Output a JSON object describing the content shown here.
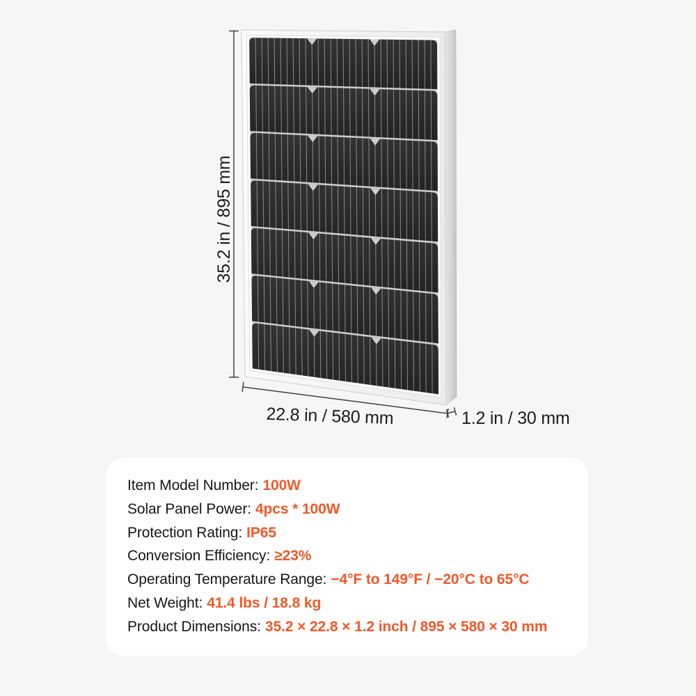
{
  "page": {
    "background_color": "#f6f6f6",
    "card_color": "#ffffff",
    "accent_color": "#f1582a",
    "text_color": "#161616"
  },
  "diagram": {
    "height_label": "35.2 in / 895 mm",
    "width_label": "22.8 in / 580 mm",
    "depth_label": "1.2 in / 30 mm",
    "panel": {
      "rows": 7,
      "columns": 3,
      "stripes_per_row": 30,
      "cell_color": "#2a2a2a",
      "frame_color": "#f2f2f2"
    }
  },
  "specs": {
    "items": [
      {
        "label": "Item Model Number:",
        "value": "100W"
      },
      {
        "label": "Solar Panel Power:",
        "value": "4pcs * 100W"
      },
      {
        "label": "Protection Rating:",
        "value": "IP65"
      },
      {
        "label": "Conversion Efficiency:",
        "value": "≥23%"
      },
      {
        "label": "Operating Temperature Range:",
        "value": "−4°F to 149°F / −20°C to 65°C"
      },
      {
        "label": "Net Weight:",
        "value": "41.4 lbs / 18.8 kg"
      },
      {
        "label": "Product Dimensions:",
        "value": "35.2 × 22.8 × 1.2 inch / 895 × 580 × 30 mm"
      }
    ]
  }
}
